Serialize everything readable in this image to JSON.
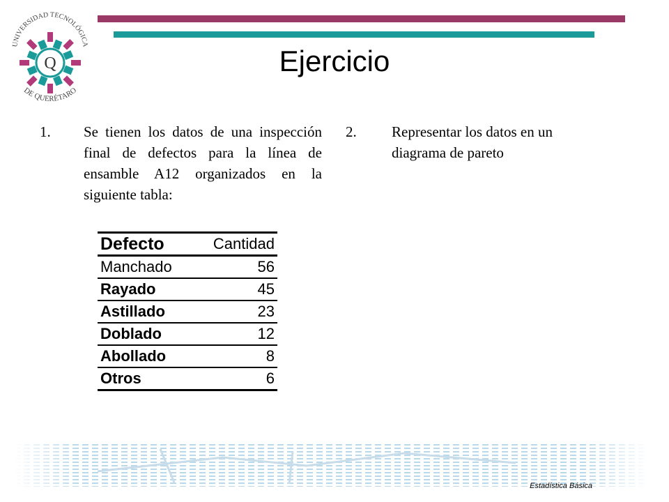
{
  "logo": {
    "text_top": "UNIVERSIDAD TECNOLÓGICA",
    "text_bottom": "DE QUERÉTARO",
    "letter": "Q",
    "colors": {
      "teal": "#1b9a9a",
      "magenta": "#b03a7a",
      "gray": "#555555"
    }
  },
  "title": "Ejercicio",
  "items": [
    {
      "number": "1.",
      "text": "Se tienen los datos de una inspección final de defectos para la línea de ensamble A12 organizados en la siguiente tabla:"
    },
    {
      "number": "2.",
      "text": "Representar los datos en un diagrama de pareto"
    }
  ],
  "table": {
    "headers": [
      "Defecto",
      "Cantidad"
    ],
    "rows": [
      {
        "defecto": "Manchado",
        "cantidad": "56"
      },
      {
        "defecto": "Rayado",
        "cantidad": "45"
      },
      {
        "defecto": "Astillado",
        "cantidad": "23"
      },
      {
        "defecto": "Doblado",
        "cantidad": "12"
      },
      {
        "defecto": "Abollado",
        "cantidad": "8"
      },
      {
        "defecto": "Otros",
        "cantidad": "6"
      }
    ]
  },
  "footer": "Estadística Básica",
  "colors": {
    "bar_top": "#9a3866",
    "bar_mid": "#1b9a9a",
    "footer_deco": "#b8d8ec"
  }
}
